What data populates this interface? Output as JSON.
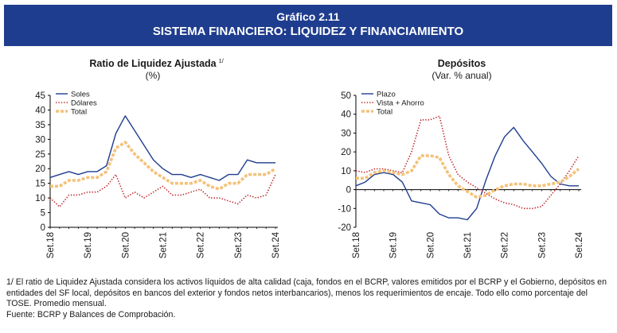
{
  "header": {
    "label": "Gráfico 2.11",
    "title": "SISTEMA FINANCIERO: LIQUIDEZ Y FINANCIAMIENTO"
  },
  "chart_data": [
    {
      "type": "line",
      "title": "Ratio de Liquidez Ajustada",
      "title_footnote": "1/",
      "subtitle": "(%)",
      "ylim": [
        0,
        45
      ],
      "yticks": [
        0,
        5,
        10,
        15,
        20,
        25,
        30,
        35,
        40,
        45
      ],
      "x": [
        "Set.18",
        "Dic.18",
        "Mar.19",
        "Jun.19",
        "Set.19",
        "Dic.19",
        "Mar.20",
        "Jun.20",
        "Set.20",
        "Dic.20",
        "Mar.21",
        "Jun.21",
        "Set.21",
        "Dic.21",
        "Mar.22",
        "Jun.22",
        "Set.22",
        "Dic.22",
        "Mar.23",
        "Jun.23",
        "Set.23",
        "Dic.23",
        "Mar.24",
        "Jun.24",
        "Set.24"
      ],
      "xtick_labels": [
        "Set.18",
        "Set.19",
        "Set.20",
        "Set.21",
        "Set.22",
        "Set.23",
        "Set.24"
      ],
      "grid": false,
      "legend": "top-left",
      "series": [
        {
          "name": "Soles",
          "color": "#1f3d8f",
          "style": "solid",
          "values": [
            17,
            18,
            19,
            18,
            19,
            19,
            21,
            32,
            38,
            33,
            28,
            23,
            20,
            18,
            18,
            17,
            18,
            17,
            16,
            18,
            18,
            23,
            22,
            22,
            22
          ]
        },
        {
          "name": "Dólares",
          "color": "#c0272d",
          "style": "dotted",
          "values": [
            10,
            7,
            11,
            11,
            12,
            12,
            14,
            18,
            10,
            12,
            10,
            12,
            14,
            11,
            11,
            12,
            13,
            10,
            10,
            9,
            8,
            11,
            10,
            11,
            18
          ]
        },
        {
          "name": "Total",
          "color": "#f3c27a",
          "style": "dashed-thick",
          "values": [
            14,
            14,
            16,
            16,
            17,
            17,
            19,
            27,
            29,
            25,
            22,
            19,
            17,
            15,
            15,
            15,
            16,
            14,
            13,
            15,
            15,
            18,
            18,
            18,
            20
          ]
        }
      ]
    },
    {
      "type": "line",
      "title": "Depósitos",
      "subtitle": "(Var. % anual)",
      "ylim": [
        -20,
        50
      ],
      "yticks": [
        -20,
        -10,
        0,
        10,
        20,
        30,
        40,
        50
      ],
      "x": [
        "Set.18",
        "Dic.18",
        "Mar.19",
        "Jun.19",
        "Set.19",
        "Dic.19",
        "Mar.20",
        "Jun.20",
        "Set.20",
        "Dic.20",
        "Mar.21",
        "Jun.21",
        "Set.21",
        "Dic.21",
        "Mar.22",
        "Jun.22",
        "Set.22",
        "Dic.22",
        "Mar.23",
        "Jun.23",
        "Set.23",
        "Dic.23",
        "Mar.24",
        "Jun.24",
        "Set.24"
      ],
      "xtick_labels": [
        "Set.18",
        "Set.19",
        "Set.20",
        "Set.21",
        "Set.22",
        "Set.23",
        "Set.24"
      ],
      "grid": false,
      "legend": "top-left",
      "series": [
        {
          "name": "Plazo",
          "color": "#1f3d8f",
          "style": "solid",
          "values": [
            2,
            4,
            8,
            9,
            8,
            4,
            -6,
            -7,
            -8,
            -13,
            -15,
            -15,
            -16,
            -10,
            5,
            18,
            28,
            33,
            26,
            20,
            14,
            7,
            3,
            2,
            2
          ]
        },
        {
          "name": "Vista + Ahorro",
          "color": "#c0272d",
          "style": "dotted",
          "values": [
            10,
            9,
            11,
            11,
            10,
            9,
            20,
            37,
            37,
            39,
            18,
            8,
            4,
            1,
            -2,
            -5,
            -7,
            -8,
            -10,
            -10,
            -9,
            -3,
            3,
            10,
            18
          ]
        },
        {
          "name": "Total",
          "color": "#f3c27a",
          "style": "dashed-thick",
          "values": [
            6,
            6,
            9,
            10,
            9,
            8,
            10,
            18,
            18,
            17,
            8,
            2,
            -1,
            -4,
            -3,
            0,
            2,
            3,
            3,
            2,
            2,
            3,
            4,
            7,
            11
          ]
        }
      ]
    }
  ],
  "notes": {
    "footnote": "1/ El ratio de Liquidez Ajustada considera los activos líquidos de alta calidad (caja, fondos en el BCRP, valores emitidos por el BCRP y el Gobierno, depósitos en entidades del SF local, depósitos en bancos del exterior y fondos netos interbancarios), menos los requerimientos de encaje. Todo ello como porcentaje del TOSE. Promedio mensual.",
    "source": "Fuente: BCRP y Balances de Comprobación."
  }
}
